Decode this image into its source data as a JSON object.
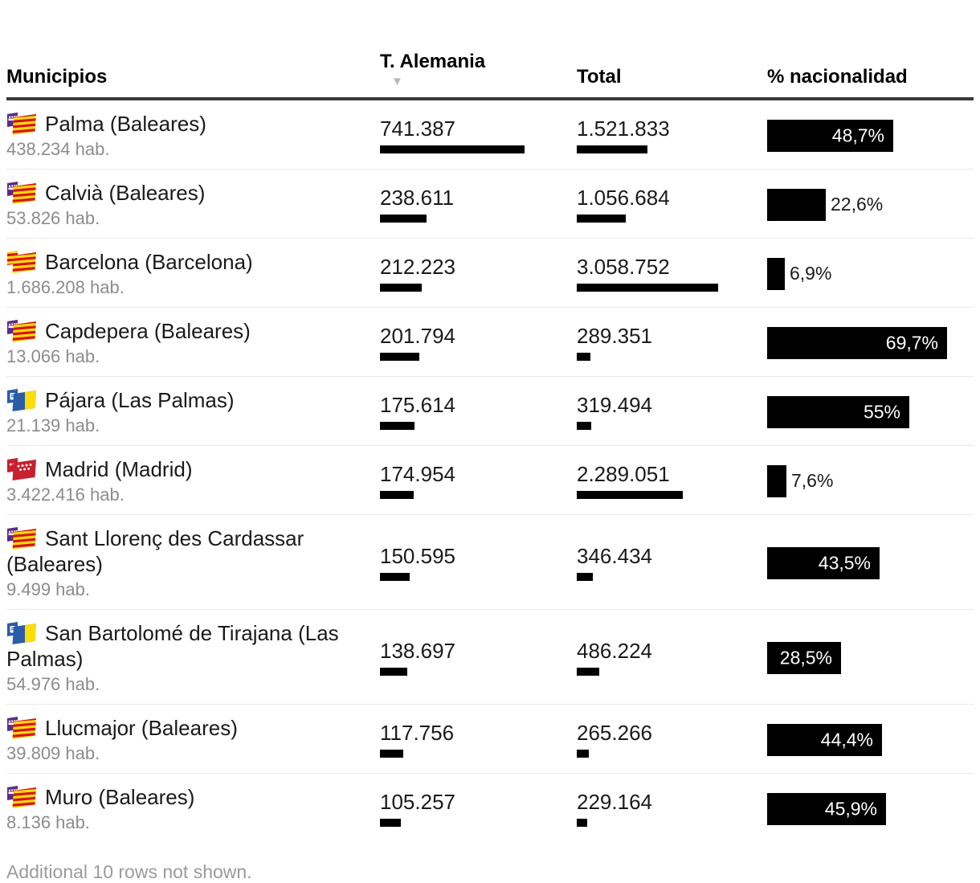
{
  "header": {
    "municipios": "Municipios",
    "t_alemania": "T. Alemania",
    "total": "Total",
    "pct": "% nacionalidad",
    "sort_icon": "▼",
    "sorted_by": "T. Alemania",
    "sort_direction": "descending"
  },
  "rows": [
    {
      "flag": "balearic",
      "name": "Palma (Baleares)",
      "population": "438.234 hab.",
      "t_alemania": "741.387",
      "t_alemania_value": 741387,
      "total": "1.521.833",
      "total_value": 1521833,
      "pct_label": "48,7%",
      "pct_value": 48.7,
      "pct_label_inside": true
    },
    {
      "flag": "balearic",
      "name": "Calvià (Baleares)",
      "population": "53.826 hab.",
      "t_alemania": "238.611",
      "t_alemania_value": 238611,
      "total": "1.056.684",
      "total_value": 1056684,
      "pct_label": "22,6%",
      "pct_value": 22.6,
      "pct_label_inside": false
    },
    {
      "flag": "catalonia",
      "name": "Barcelona (Barcelona)",
      "population": "1.686.208 hab.",
      "t_alemania": "212.223",
      "t_alemania_value": 212223,
      "total": "3.058.752",
      "total_value": 3058752,
      "pct_label": "6,9%",
      "pct_value": 6.9,
      "pct_label_inside": false
    },
    {
      "flag": "balearic",
      "name": "Capdepera (Baleares)",
      "population": "13.066 hab.",
      "t_alemania": "201.794",
      "t_alemania_value": 201794,
      "total": "289.351",
      "total_value": 289351,
      "pct_label": "69,7%",
      "pct_value": 69.7,
      "pct_label_inside": true
    },
    {
      "flag": "canary",
      "name": "Pájara (Las Palmas)",
      "population": "21.139 hab.",
      "t_alemania": "175.614",
      "t_alemania_value": 175614,
      "total": "319.494",
      "total_value": 319494,
      "pct_label": "55%",
      "pct_value": 55,
      "pct_label_inside": true
    },
    {
      "flag": "madrid",
      "name": "Madrid (Madrid)",
      "population": "3.422.416 hab.",
      "t_alemania": "174.954",
      "t_alemania_value": 174954,
      "total": "2.289.051",
      "total_value": 2289051,
      "pct_label": "7,6%",
      "pct_value": 7.6,
      "pct_label_inside": false
    },
    {
      "flag": "balearic",
      "name": "Sant Llorenç des Cardassar (Baleares)",
      "population": "9.499 hab.",
      "t_alemania": "150.595",
      "t_alemania_value": 150595,
      "total": "346.434",
      "total_value": 346434,
      "pct_label": "43,5%",
      "pct_value": 43.5,
      "pct_label_inside": true
    },
    {
      "flag": "canary",
      "name": "San Bartolomé de Tirajana (Las Palmas)",
      "population": "54.976 hab.",
      "t_alemania": "138.697",
      "t_alemania_value": 138697,
      "total": "486.224",
      "total_value": 486224,
      "pct_label": "28,5%",
      "pct_value": 28.5,
      "pct_label_inside": true
    },
    {
      "flag": "balearic",
      "name": "Llucmajor (Baleares)",
      "population": "39.809 hab.",
      "t_alemania": "117.756",
      "t_alemania_value": 117756,
      "total": "265.266",
      "total_value": 265266,
      "pct_label": "44,4%",
      "pct_value": 44.4,
      "pct_label_inside": true
    },
    {
      "flag": "balearic",
      "name": "Muro (Baleares)",
      "population": "8.136 hab.",
      "t_alemania": "105.257",
      "t_alemania_value": 105257,
      "total": "229.164",
      "total_value": 229164,
      "pct_label": "45,9%",
      "pct_value": 45.9,
      "pct_label_inside": true
    }
  ],
  "footer": {
    "note": "Additional 10 rows not shown."
  },
  "colors": {
    "bar": "#000000",
    "pct_label_inside_text": "#ffffff",
    "header_rule": "#383838",
    "row_rule": "#e9e9e9",
    "text": "#1a1a1a",
    "muted_text": "#8c8c8c",
    "sort_icon": "#b9b9b9"
  },
  "flag_colors": {
    "senyera_yellow": "#FCDD09",
    "senyera_red": "#DA121A",
    "balearic_purple": "#5B2B85",
    "canary_blue": "#2B5DA7",
    "madrid_red": "#C8202F"
  },
  "chart_data": {
    "type": "table",
    "title": "",
    "columns": [
      "Municipios",
      "T. Alemania",
      "Total",
      "% nacionalidad"
    ],
    "sorted_by": "T. Alemania",
    "sort_direction": "desc",
    "bar_scales": {
      "t_alemania_max": 741387,
      "total_max": 3058752,
      "pct_max": 100
    },
    "rows": [
      [
        "Palma (Baleares)",
        "438.234 hab.",
        741387,
        1521833,
        48.7
      ],
      [
        "Calvià (Baleares)",
        "53.826 hab.",
        238611,
        1056684,
        22.6
      ],
      [
        "Barcelona (Barcelona)",
        "1.686.208 hab.",
        212223,
        3058752,
        6.9
      ],
      [
        "Capdepera (Baleares)",
        "13.066 hab.",
        201794,
        289351,
        69.7
      ],
      [
        "Pájara (Las Palmas)",
        "21.139 hab.",
        175614,
        319494,
        55
      ],
      [
        "Madrid (Madrid)",
        "3.422.416 hab.",
        174954,
        2289051,
        7.6
      ],
      [
        "Sant Llorenç des Cardassar (Baleares)",
        "9.499 hab.",
        150595,
        346434,
        43.5
      ],
      [
        "San Bartolomé de Tirajana (Las Palmas)",
        "54.976 hab.",
        138697,
        486224,
        28.5
      ],
      [
        "Llucmajor (Baleares)",
        "39.809 hab.",
        117756,
        265266,
        44.4
      ],
      [
        "Muro (Baleares)",
        "8.136 hab.",
        105257,
        229164,
        45.9
      ]
    ],
    "footnote": "Additional 10 rows not shown."
  }
}
